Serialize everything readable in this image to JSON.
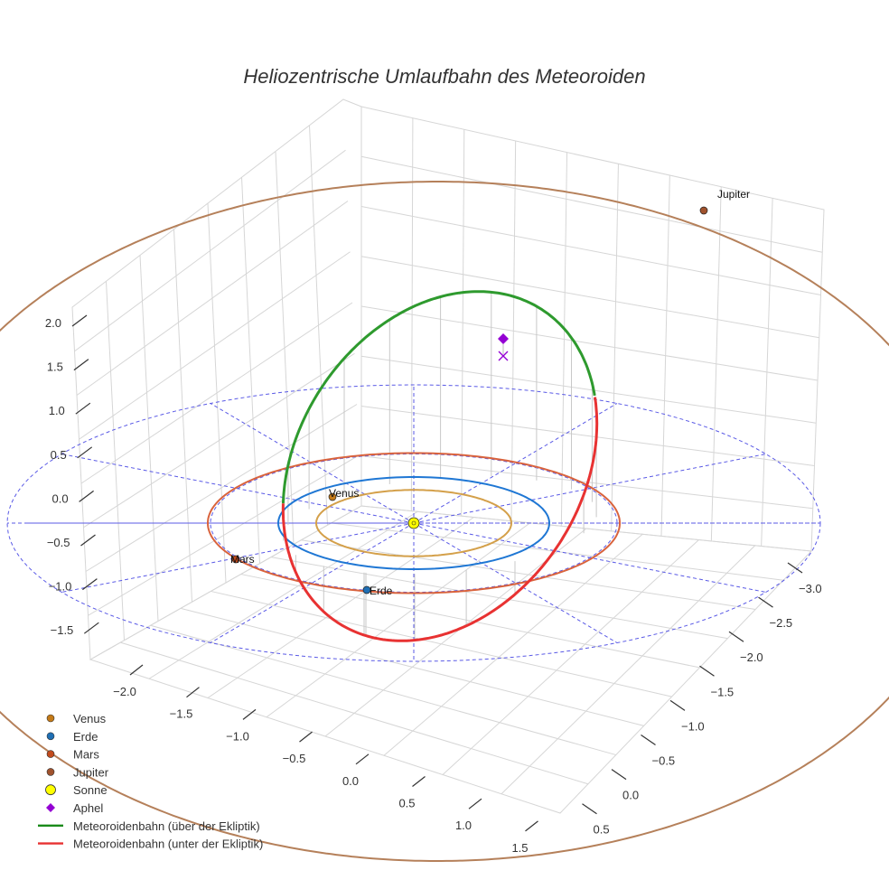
{
  "chart_data": {
    "type": "3d-line",
    "title": "Heliozentrische Umlaufbahn des Meteoroiden",
    "x_ticks": [
      "−2.0",
      "−1.5",
      "−1.0",
      "−0.5",
      "0.0",
      "0.5",
      "1.0",
      "1.5"
    ],
    "y_ticks": [
      "−3.0",
      "−2.5",
      "−2.0",
      "−1.5",
      "−1.0",
      "−0.5",
      "0.0",
      "0.5"
    ],
    "z_ticks": [
      "2.0",
      "1.5",
      "1.0",
      "0.5",
      "0.0",
      "−0.5",
      "−1.0",
      "−1.5"
    ],
    "planets": [
      {
        "name": "Venus",
        "label": "Venus",
        "radius_au": 0.72,
        "color": "#d4a04a",
        "marker_color": "#c47a18"
      },
      {
        "name": "Erde",
        "label": "Erde",
        "radius_au": 1.0,
        "color": "#1f77d4",
        "marker_color": "#1f6fb4"
      },
      {
        "name": "Mars",
        "label": "Mars",
        "radius_au": 1.52,
        "color": "#d9633d",
        "marker_color": "#c24a1c"
      },
      {
        "name": "Jupiter",
        "label": "Jupiter",
        "radius_au": 5.2,
        "color": "#b5805a",
        "marker_color": "#a0522d"
      }
    ],
    "reference_circles_au": [
      1.5,
      3.0
    ],
    "orbit_segments": [
      {
        "name": "Meteoroidenbahn (über der Ekliptik)",
        "color": "#2e9a2e"
      },
      {
        "name": "Meteoroidenbahn (unter der Ekliptik)",
        "color": "#e83232"
      }
    ],
    "sun": {
      "label": "Sonne",
      "color": "#ffff00"
    },
    "aphel": {
      "label": "Aphel",
      "color": "#9400d3",
      "z_au": 2.0
    },
    "legend_position": "bottom-left",
    "legend": [
      {
        "label": "Venus",
        "type": "dot",
        "color": "#c47a18"
      },
      {
        "label": "Erde",
        "type": "dot",
        "color": "#1f6fb4"
      },
      {
        "label": "Mars",
        "type": "dot",
        "color": "#c24a1c"
      },
      {
        "label": "Jupiter",
        "type": "dot",
        "color": "#a0522d"
      },
      {
        "label": "Sonne",
        "type": "sun",
        "color": "#ffff00"
      },
      {
        "label": "Aphel",
        "type": "diamond",
        "color": "#9400d3"
      },
      {
        "label": "Meteoroidenbahn (über der Ekliptik)",
        "type": "line",
        "color": "#1a8a1a"
      },
      {
        "label": "Meteoroidenbahn (unter der Ekliptik)",
        "type": "line",
        "color": "#e83232"
      }
    ]
  }
}
